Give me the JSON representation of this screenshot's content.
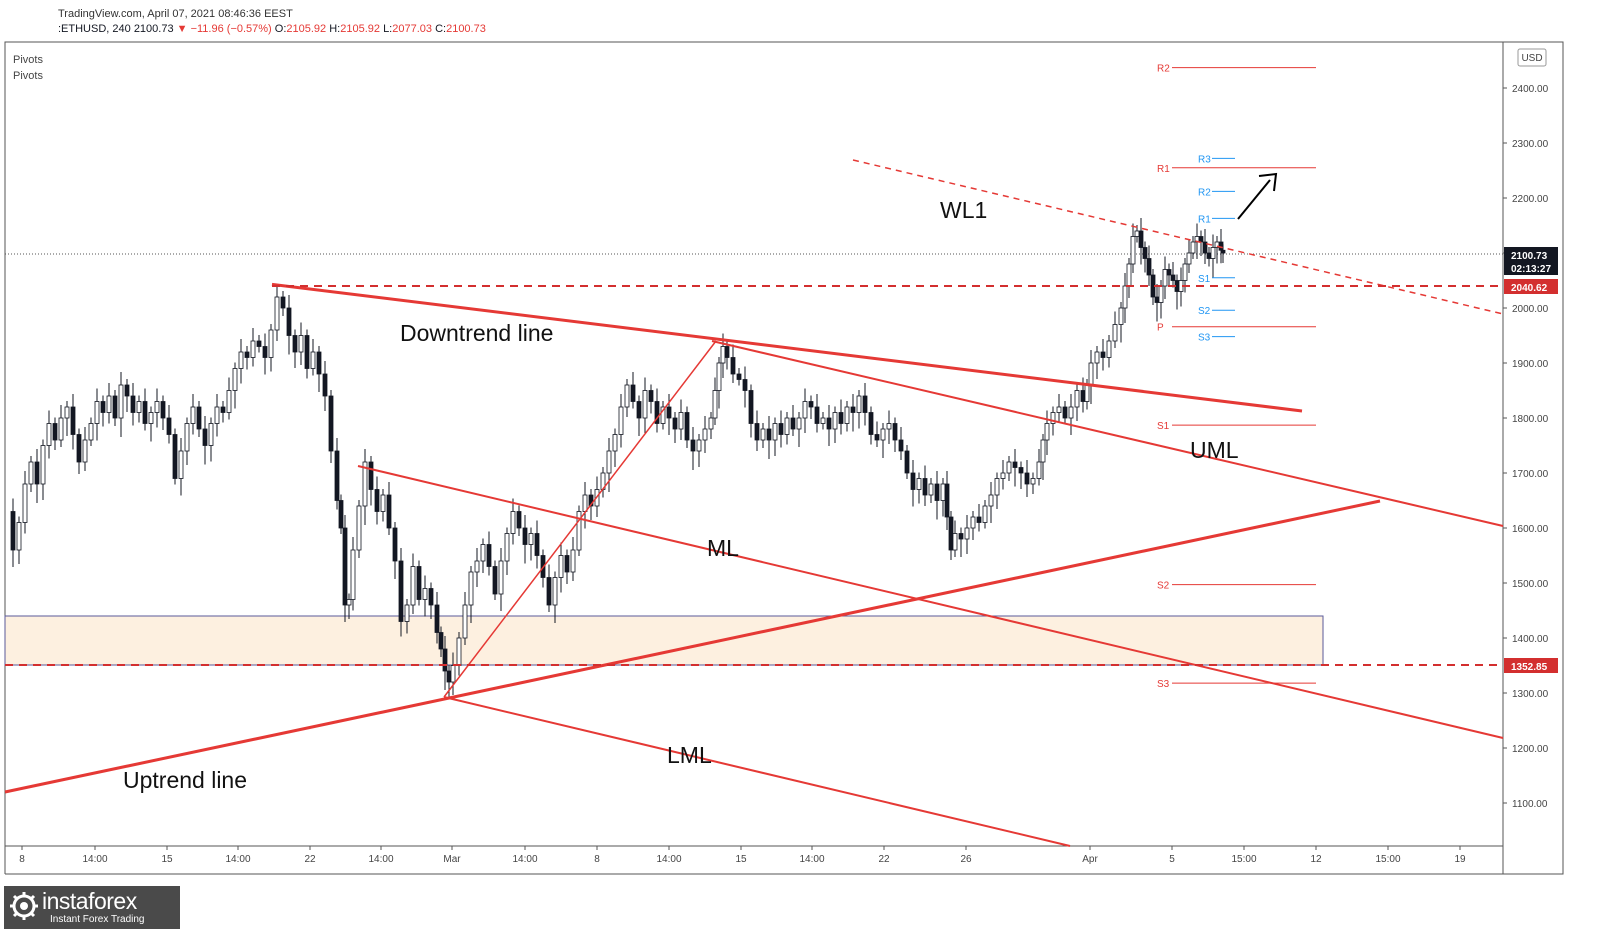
{
  "header": {
    "source": "TradingView.com, April 07, 2021 08:46:36 EEST",
    "symbol": ":ETHUSD, 240",
    "last": "2100.73",
    "change": "▼ −11.96 (−0.57%)",
    "open_label": "O:",
    "open": "2105.92",
    "high_label": "H:",
    "high": "2105.92",
    "low_label": "L:",
    "low": "2077.03",
    "close_label": "C:",
    "close": "2100.73"
  },
  "indicators": [
    "Pivots",
    "Pivots"
  ],
  "currency": "USD",
  "logo": {
    "name": "instaforex",
    "tagline": "Instant Forex Trading",
    "icon": "gear-globe-icon"
  },
  "colors": {
    "up": "#131722",
    "down": "#131722",
    "line": "#e53935",
    "pivot_blue": "#2196f3",
    "zone": "#fdf0e0"
  },
  "chart_data": {
    "type": "candlestick",
    "x_ticks": [
      "8",
      "14:00",
      "15",
      "14:00",
      "22",
      "14:00",
      "Mar",
      "14:00",
      "8",
      "14:00",
      "15",
      "14:00",
      "22",
      "26",
      "Apr",
      "5",
      "15:00",
      "12",
      "15:00",
      "19"
    ],
    "y_ticks": [
      "2400.00",
      "2300.00",
      "2200.00",
      "2100.00",
      "2000.00",
      "1900.00",
      "1800.00",
      "1700.00",
      "1600.00",
      "1500.00",
      "1400.00",
      "1300.00",
      "1200.00",
      "1100.00"
    ],
    "ylim": [
      1020,
      2490
    ],
    "price_labels": {
      "current": "2100.73",
      "countdown": "02:13:27",
      "resistance": "2040.62",
      "support": "1352.85"
    },
    "price_path": [
      [
        0,
        1630
      ],
      [
        6,
        1560
      ],
      [
        12,
        1610
      ],
      [
        18,
        1680
      ],
      [
        24,
        1720
      ],
      [
        30,
        1680
      ],
      [
        36,
        1750
      ],
      [
        42,
        1790
      ],
      [
        48,
        1760
      ],
      [
        54,
        1800
      ],
      [
        60,
        1820
      ],
      [
        66,
        1770
      ],
      [
        72,
        1720
      ],
      [
        78,
        1760
      ],
      [
        84,
        1790
      ],
      [
        90,
        1830
      ],
      [
        96,
        1810
      ],
      [
        102,
        1840
      ],
      [
        108,
        1800
      ],
      [
        114,
        1860
      ],
      [
        120,
        1840
      ],
      [
        126,
        1810
      ],
      [
        132,
        1830
      ],
      [
        138,
        1790
      ],
      [
        144,
        1810
      ],
      [
        150,
        1830
      ],
      [
        156,
        1800
      ],
      [
        162,
        1770
      ],
      [
        168,
        1690
      ],
      [
        174,
        1740
      ],
      [
        180,
        1790
      ],
      [
        186,
        1820
      ],
      [
        192,
        1780
      ],
      [
        198,
        1750
      ],
      [
        204,
        1790
      ],
      [
        210,
        1820
      ],
      [
        216,
        1810
      ],
      [
        222,
        1850
      ],
      [
        228,
        1890
      ],
      [
        234,
        1920
      ],
      [
        240,
        1910
      ],
      [
        246,
        1940
      ],
      [
        252,
        1930
      ],
      [
        258,
        1910
      ],
      [
        264,
        1960
      ],
      [
        270,
        2020
      ],
      [
        276,
        2000
      ],
      [
        282,
        1950
      ],
      [
        288,
        1920
      ],
      [
        294,
        1950
      ],
      [
        300,
        1890
      ],
      [
        306,
        1920
      ],
      [
        312,
        1880
      ],
      [
        318,
        1840
      ],
      [
        324,
        1740
      ],
      [
        330,
        1650
      ],
      [
        334,
        1600
      ],
      [
        338,
        1460
      ],
      [
        342,
        1470
      ],
      [
        346,
        1560
      ],
      [
        352,
        1640
      ],
      [
        358,
        1720
      ],
      [
        364,
        1670
      ],
      [
        370,
        1630
      ],
      [
        376,
        1660
      ],
      [
        382,
        1600
      ],
      [
        388,
        1540
      ],
      [
        394,
        1430
      ],
      [
        400,
        1460
      ],
      [
        406,
        1530
      ],
      [
        412,
        1470
      ],
      [
        418,
        1490
      ],
      [
        424,
        1460
      ],
      [
        430,
        1410
      ],
      [
        434,
        1380
      ],
      [
        438,
        1340
      ],
      [
        442,
        1320
      ],
      [
        446,
        1350
      ],
      [
        452,
        1400
      ],
      [
        458,
        1460
      ],
      [
        464,
        1520
      ],
      [
        470,
        1540
      ],
      [
        476,
        1570
      ],
      [
        482,
        1530
      ],
      [
        488,
        1480
      ],
      [
        494,
        1540
      ],
      [
        500,
        1590
      ],
      [
        506,
        1630
      ],
      [
        512,
        1600
      ],
      [
        518,
        1570
      ],
      [
        524,
        1590
      ],
      [
        530,
        1550
      ],
      [
        536,
        1510
      ],
      [
        542,
        1460
      ],
      [
        548,
        1510
      ],
      [
        554,
        1550
      ],
      [
        560,
        1520
      ],
      [
        566,
        1560
      ],
      [
        572,
        1630
      ],
      [
        578,
        1660
      ],
      [
        584,
        1640
      ],
      [
        590,
        1670
      ],
      [
        596,
        1700
      ],
      [
        602,
        1740
      ],
      [
        608,
        1770
      ],
      [
        614,
        1820
      ],
      [
        620,
        1860
      ],
      [
        626,
        1830
      ],
      [
        632,
        1800
      ],
      [
        638,
        1850
      ],
      [
        644,
        1830
      ],
      [
        650,
        1790
      ],
      [
        656,
        1820
      ],
      [
        662,
        1800
      ],
      [
        668,
        1780
      ],
      [
        674,
        1810
      ],
      [
        680,
        1760
      ],
      [
        686,
        1740
      ],
      [
        692,
        1760
      ],
      [
        698,
        1780
      ],
      [
        704,
        1800
      ],
      [
        708,
        1850
      ],
      [
        712,
        1900
      ],
      [
        716,
        1930
      ],
      [
        720,
        1910
      ],
      [
        726,
        1880
      ],
      [
        732,
        1870
      ],
      [
        738,
        1850
      ],
      [
        744,
        1790
      ],
      [
        750,
        1760
      ],
      [
        756,
        1780
      ],
      [
        762,
        1760
      ],
      [
        768,
        1790
      ],
      [
        774,
        1770
      ],
      [
        780,
        1800
      ],
      [
        786,
        1780
      ],
      [
        792,
        1800
      ],
      [
        798,
        1830
      ],
      [
        804,
        1820
      ],
      [
        810,
        1790
      ],
      [
        816,
        1800
      ],
      [
        822,
        1780
      ],
      [
        828,
        1810
      ],
      [
        834,
        1790
      ],
      [
        840,
        1820
      ],
      [
        846,
        1810
      ],
      [
        852,
        1840
      ],
      [
        858,
        1810
      ],
      [
        864,
        1770
      ],
      [
        870,
        1760
      ],
      [
        876,
        1780
      ],
      [
        882,
        1790
      ],
      [
        888,
        1760
      ],
      [
        894,
        1740
      ],
      [
        900,
        1700
      ],
      [
        906,
        1670
      ],
      [
        912,
        1690
      ],
      [
        918,
        1660
      ],
      [
        924,
        1680
      ],
      [
        930,
        1650
      ],
      [
        936,
        1680
      ],
      [
        940,
        1620
      ],
      [
        944,
        1560
      ],
      [
        948,
        1590
      ],
      [
        954,
        1580
      ],
      [
        960,
        1600
      ],
      [
        966,
        1620
      ],
      [
        972,
        1610
      ],
      [
        978,
        1640
      ],
      [
        984,
        1660
      ],
      [
        990,
        1690
      ],
      [
        996,
        1700
      ],
      [
        1002,
        1720
      ],
      [
        1008,
        1710
      ],
      [
        1014,
        1700
      ],
      [
        1020,
        1680
      ],
      [
        1026,
        1690
      ],
      [
        1032,
        1720
      ],
      [
        1036,
        1760
      ],
      [
        1040,
        1790
      ],
      [
        1046,
        1810
      ],
      [
        1052,
        1820
      ],
      [
        1058,
        1800
      ],
      [
        1064,
        1820
      ],
      [
        1070,
        1850
      ],
      [
        1076,
        1830
      ],
      [
        1080,
        1860
      ],
      [
        1084,
        1900
      ],
      [
        1090,
        1920
      ],
      [
        1096,
        1910
      ],
      [
        1102,
        1940
      ],
      [
        1108,
        1970
      ],
      [
        1114,
        2000
      ],
      [
        1118,
        2040
      ],
      [
        1122,
        2080
      ],
      [
        1126,
        2130
      ],
      [
        1130,
        2140
      ],
      [
        1134,
        2110
      ],
      [
        1138,
        2090
      ],
      [
        1142,
        2060
      ],
      [
        1146,
        2020
      ],
      [
        1150,
        2010
      ],
      [
        1154,
        2040
      ],
      [
        1158,
        2070
      ],
      [
        1162,
        2060
      ],
      [
        1166,
        2050
      ],
      [
        1170,
        2030
      ],
      [
        1174,
        2050
      ],
      [
        1178,
        2080
      ],
      [
        1182,
        2100
      ],
      [
        1186,
        2120
      ],
      [
        1190,
        2130
      ],
      [
        1194,
        2120
      ],
      [
        1198,
        2100
      ],
      [
        1202,
        2090
      ],
      [
        1206,
        2110
      ],
      [
        1210,
        2120
      ],
      [
        1214,
        2105
      ],
      [
        1216,
        2100
      ]
    ],
    "pivot_levels": [
      {
        "label": "R2",
        "value": 2437,
        "color": "red"
      },
      {
        "label": "R1",
        "value": 2255,
        "color": "red"
      },
      {
        "label": "P",
        "value": 1966,
        "color": "red"
      },
      {
        "label": "S1",
        "value": 1787,
        "color": "red"
      },
      {
        "label": "S2",
        "value": 1497,
        "color": "red"
      },
      {
        "label": "S3",
        "value": 1318,
        "color": "red"
      },
      {
        "label": "R3",
        "value": 2272,
        "color": "blue"
      },
      {
        "label": "R2",
        "value": 2212,
        "color": "blue"
      },
      {
        "label": "R1",
        "value": 2163,
        "color": "blue"
      },
      {
        "label": "S1",
        "value": 2055,
        "color": "blue"
      },
      {
        "label": "S2",
        "value": 1996,
        "color": "blue"
      },
      {
        "label": "S3",
        "value": 1948,
        "color": "blue"
      }
    ],
    "annotations": [
      "WL1",
      "Downtrend line",
      "UML",
      "ML",
      "LML",
      "Uptrend line"
    ]
  }
}
